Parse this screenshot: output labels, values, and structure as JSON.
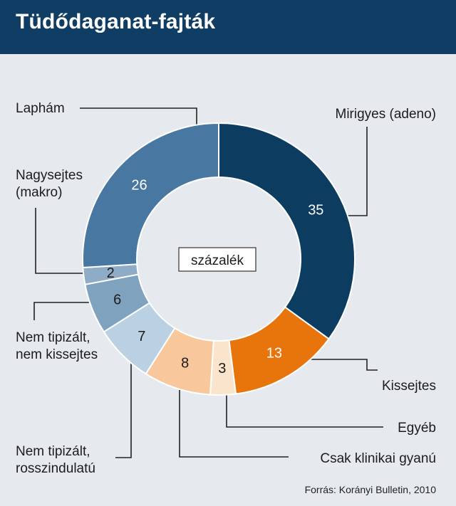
{
  "title": "Tüdődaganat-fajták",
  "source": "Forrás: Korányi Bulletin, 2010",
  "chart_data": {
    "type": "pie",
    "style": "donut",
    "title": "Tüdődaganat-fajták",
    "center_label": "százalék",
    "unit": "százalék",
    "slices": [
      {
        "label": [
          "Mirigyes (adeno)"
        ],
        "value": 35,
        "color": "#0d3c61",
        "text_color": "#ffffff"
      },
      {
        "label": [
          "Kissejtes"
        ],
        "value": 13,
        "color": "#e8740c",
        "text_color": "#ffffff"
      },
      {
        "label": [
          "Egyéb"
        ],
        "value": 3,
        "color": "#fbe4cc",
        "text_color": "#1c1c1c"
      },
      {
        "label": [
          "Csak klinikai gyanú"
        ],
        "value": 8,
        "color": "#f8c89c",
        "text_color": "#1c1c1c"
      },
      {
        "label": [
          "Nem tipizált,",
          "rosszindulatú"
        ],
        "value": 7,
        "color": "#b9d1e3",
        "text_color": "#1c1c1c"
      },
      {
        "label": [
          "Nem tipizált,",
          "nem kissejtes"
        ],
        "value": 6,
        "color": "#7fa3bf",
        "text_color": "#1c1c1c"
      },
      {
        "label": [
          "Nagysejtes",
          "(makro)"
        ],
        "value": 2,
        "color": "#8eacc6",
        "text_color": "#1c1c1c"
      },
      {
        "label": [
          "Laphám"
        ],
        "value": 26,
        "color": "#4878a2",
        "text_color": "#ffffff"
      }
    ]
  }
}
